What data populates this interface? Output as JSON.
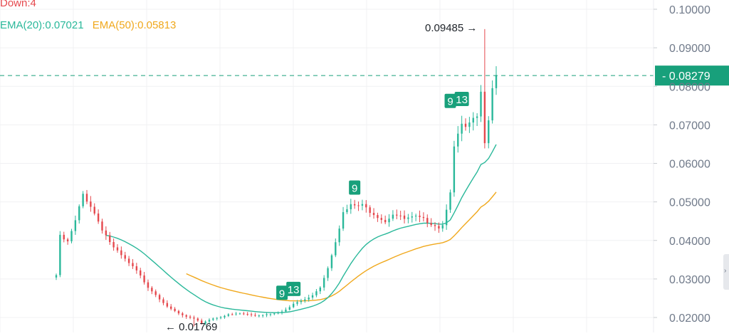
{
  "legend": {
    "down": "Down:4",
    "ema20": "EMA(20):0.07021",
    "ema50": "EMA(50):0.05813"
  },
  "annotations": {
    "high_label": "0.09485 →",
    "low_label": "← 0.01769"
  },
  "colors": {
    "up": "#2ab89a",
    "down": "#e5484d",
    "ema20": "#2ab89a",
    "ema50": "#f0a81c",
    "grid": "#f0f1f3",
    "axis_text": "#707a8a",
    "price_tag_bg": "#18a07b"
  },
  "chart_data": {
    "type": "candlestick",
    "ylim": [
      0.018,
      0.1025
    ],
    "y_ticks": [
      "0.10000",
      "0.09000",
      "0.08000",
      "0.07000",
      "0.06000",
      "0.05000",
      "0.04000",
      "0.03000",
      "0.02000"
    ],
    "current_price": "0.08279",
    "high": 0.09485,
    "low": 0.01769,
    "markers": [
      {
        "label": "9",
        "x_index": 78,
        "price": 0.0515,
        "above": true
      },
      {
        "label": "9",
        "x_index": 59,
        "price": 0.0242,
        "above": true
      },
      {
        "label": "13",
        "x_index": 62,
        "price": 0.0252,
        "above": true
      },
      {
        "label": "9",
        "x_index": 103,
        "price": 0.074,
        "above": true
      },
      {
        "label": "13",
        "x_index": 106,
        "price": 0.0745,
        "above": true
      }
    ],
    "anchors": [
      [
        0,
        0.031
      ],
      [
        1,
        0.041
      ],
      [
        3,
        0.0395
      ],
      [
        5,
        0.045
      ],
      [
        7,
        0.052
      ],
      [
        9,
        0.049
      ],
      [
        12,
        0.043
      ],
      [
        15,
        0.038
      ],
      [
        18,
        0.035
      ],
      [
        21,
        0.032
      ],
      [
        24,
        0.028
      ],
      [
        27,
        0.025
      ],
      [
        30,
        0.022
      ],
      [
        33,
        0.0205
      ],
      [
        36,
        0.0195
      ],
      [
        38,
        0.0185
      ],
      [
        40,
        0.0195
      ],
      [
        44,
        0.0205
      ],
      [
        48,
        0.021
      ],
      [
        52,
        0.0205
      ],
      [
        56,
        0.021
      ],
      [
        60,
        0.022
      ],
      [
        63,
        0.024
      ],
      [
        66,
        0.025
      ],
      [
        69,
        0.028
      ],
      [
        71,
        0.033
      ],
      [
        73,
        0.04
      ],
      [
        75,
        0.047
      ],
      [
        77,
        0.049
      ],
      [
        80,
        0.049
      ],
      [
        83,
        0.047
      ],
      [
        86,
        0.045
      ],
      [
        88,
        0.047
      ],
      [
        91,
        0.0455
      ],
      [
        94,
        0.046
      ],
      [
        97,
        0.045
      ],
      [
        100,
        0.0435
      ],
      [
        101,
        0.044
      ],
      [
        103,
        0.053
      ],
      [
        104,
        0.064
      ],
      [
        106,
        0.07
      ],
      [
        107,
        0.069
      ],
      [
        109,
        0.071
      ],
      [
        110,
        0.072
      ],
      [
        111,
        0.078
      ],
      [
        112,
        0.066
      ],
      [
        113,
        0.072
      ],
      [
        114,
        0.08
      ],
      [
        115,
        0.0828
      ]
    ]
  }
}
